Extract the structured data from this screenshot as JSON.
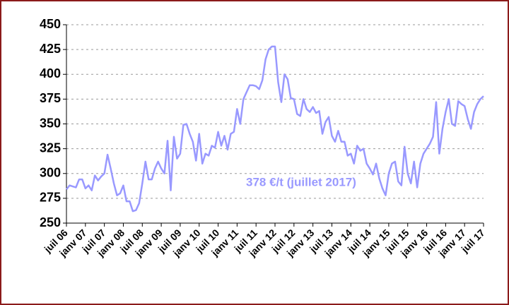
{
  "chart_data": {
    "type": "line",
    "annotation": "378 €/t (juillet 2017)",
    "categories": [
      "juil 06",
      null,
      null,
      null,
      null,
      null,
      "janv 07",
      null,
      null,
      null,
      null,
      null,
      "juil 07",
      null,
      null,
      null,
      null,
      null,
      "janv 08",
      null,
      null,
      null,
      null,
      null,
      "juil 08",
      null,
      null,
      null,
      null,
      null,
      "janv 09",
      null,
      null,
      null,
      null,
      null,
      "juil 09",
      null,
      null,
      null,
      null,
      null,
      "janv 10",
      null,
      null,
      null,
      null,
      null,
      "juil 10",
      null,
      null,
      null,
      null,
      null,
      "janv 11",
      null,
      null,
      null,
      null,
      null,
      "juil 11",
      null,
      null,
      null,
      null,
      null,
      "janv 12",
      null,
      null,
      null,
      null,
      null,
      "juil 12",
      null,
      null,
      null,
      null,
      null,
      "janv 13",
      null,
      null,
      null,
      null,
      null,
      "juil 13",
      null,
      null,
      null,
      null,
      null,
      "janv 14",
      null,
      null,
      null,
      null,
      null,
      "juil 14",
      null,
      null,
      null,
      null,
      null,
      "janv 15",
      null,
      null,
      null,
      null,
      null,
      "juil 15",
      null,
      null,
      null,
      null,
      null,
      "janv 16",
      null,
      null,
      null,
      null,
      null,
      "juil 16",
      null,
      null,
      null,
      null,
      null,
      "janv 17",
      null,
      null,
      null,
      null,
      null,
      "juil 17"
    ],
    "series": [
      {
        "color": "#9999ff",
        "values": [
          284,
          288,
          287,
          286,
          294,
          294,
          285,
          288,
          283,
          298,
          293,
          297,
          300,
          319,
          305,
          290,
          278,
          280,
          288,
          272,
          272,
          262,
          263,
          270,
          290,
          312,
          294,
          294,
          305,
          312,
          305,
          300,
          333,
          283,
          337,
          315,
          320,
          349,
          350,
          340,
          332,
          313,
          340,
          310,
          320,
          318,
          328,
          326,
          342,
          328,
          338,
          324,
          340,
          342,
          365,
          350,
          375,
          382,
          389,
          389,
          388,
          385,
          394,
          415,
          425,
          428,
          428,
          392,
          372,
          400,
          395,
          376,
          375,
          360,
          358,
          375,
          365,
          362,
          367,
          361,
          363,
          340,
          352,
          357,
          338,
          332,
          343,
          332,
          332,
          318,
          320,
          310,
          328,
          323,
          325,
          310,
          305,
          299,
          310,
          295,
          285,
          278,
          300,
          310,
          312,
          292,
          288,
          327,
          300,
          290,
          312,
          286,
          310,
          320,
          325,
          330,
          337,
          372,
          320,
          345,
          362,
          375,
          350,
          348,
          373,
          370,
          368,
          355,
          345,
          362,
          370,
          375,
          378
        ]
      }
    ],
    "ylim": [
      250,
      450
    ],
    "yticks": [
      250,
      275,
      300,
      325,
      350,
      375,
      400,
      425,
      450
    ],
    "grid": true
  }
}
